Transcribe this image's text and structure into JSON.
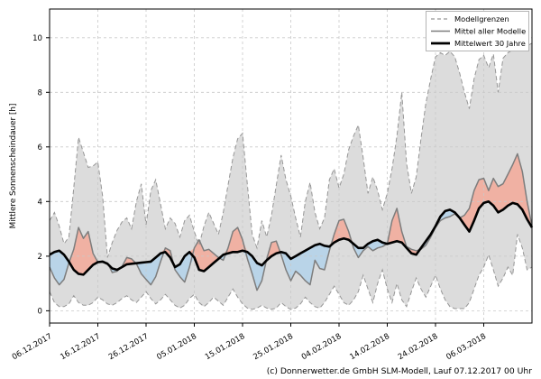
{
  "caption": "(c) Donnerwetter.de GmbH SLM-Modell, Lauf 07.12.2017 00 Uhr",
  "chart_data": {
    "type": "line",
    "title": "",
    "xlabel": "",
    "ylabel": "Mittlere Sonnenscheindauer [h]",
    "x_tick_labels": [
      "06.12.2017",
      "16.12.2017",
      "26.12.2017",
      "05.01.2018",
      "15.01.2018",
      "25.01.2018",
      "04.02.2018",
      "14.02.2018",
      "24.02.2018",
      "06.03.2018"
    ],
    "x_tick_days": [
      0,
      10,
      20,
      30,
      40,
      50,
      60,
      70,
      80,
      90
    ],
    "y_ticks": [
      0,
      2,
      4,
      6,
      8,
      10
    ],
    "xlim": [
      0,
      100
    ],
    "ylim": [
      -0.45,
      11.05
    ],
    "grid": true,
    "legend_position": "top-right",
    "legend_entries": [
      {
        "label": "Modellgrenzen",
        "style": "dashed-gray"
      },
      {
        "label": "Mittel aller Modelle",
        "style": "solid-gray"
      },
      {
        "label": "Mittelwert 30 Jahre",
        "style": "thick-black"
      }
    ],
    "series": [
      {
        "key": "upper",
        "name": "Modellgrenzen (obere Grenze)",
        "values": [
          3.3,
          3.6,
          3.1,
          2.45,
          2.7,
          4.5,
          6.35,
          5.8,
          5.25,
          5.3,
          5.45,
          4.2,
          1.95,
          2.5,
          2.95,
          3.25,
          3.4,
          3.0,
          4.0,
          4.65,
          3.15,
          4.4,
          4.8,
          3.9,
          3.0,
          3.4,
          3.2,
          2.7,
          3.3,
          3.5,
          2.9,
          2.4,
          3.1,
          3.6,
          3.2,
          2.8,
          3.6,
          4.6,
          5.6,
          6.3,
          6.5,
          4.6,
          2.8,
          2.3,
          3.3,
          2.7,
          3.5,
          4.6,
          5.7,
          4.8,
          4.2,
          3.4,
          2.7,
          4.0,
          4.7,
          3.6,
          3.0,
          3.4,
          4.8,
          5.2,
          4.5,
          5.0,
          5.9,
          6.4,
          6.8,
          5.6,
          4.3,
          4.9,
          4.4,
          3.7,
          4.3,
          5.2,
          6.4,
          8.0,
          5.4,
          4.3,
          4.9,
          6.3,
          7.6,
          8.5,
          9.3,
          9.45,
          9.35,
          9.5,
          9.3,
          8.7,
          8.0,
          7.4,
          8.5,
          9.2,
          9.35,
          8.9,
          9.4,
          8.0,
          9.25,
          9.45,
          9.55,
          9.6,
          9.65,
          9.7,
          9.8
        ]
      },
      {
        "key": "lower",
        "name": "Modellgrenzen (untere Grenze)",
        "values": [
          0.7,
          0.3,
          0.15,
          0.15,
          0.25,
          0.55,
          0.3,
          0.2,
          0.2,
          0.3,
          0.5,
          0.4,
          0.25,
          0.2,
          0.3,
          0.45,
          0.55,
          0.4,
          0.3,
          0.5,
          0.7,
          0.45,
          0.25,
          0.4,
          0.6,
          0.4,
          0.2,
          0.1,
          0.2,
          0.45,
          0.6,
          0.3,
          0.15,
          0.3,
          0.5,
          0.35,
          0.2,
          0.5,
          0.8,
          0.5,
          0.25,
          0.1,
          0.05,
          0.1,
          0.2,
          0.1,
          0.05,
          0.1,
          0.3,
          0.15,
          0.05,
          0.1,
          0.25,
          0.5,
          0.3,
          0.15,
          0.1,
          0.3,
          0.6,
          0.9,
          0.6,
          0.3,
          0.2,
          0.4,
          0.7,
          1.3,
          0.8,
          0.3,
          1.0,
          1.5,
          0.8,
          0.3,
          1.0,
          0.4,
          0.15,
          0.7,
          1.2,
          0.8,
          0.5,
          0.9,
          1.3,
          0.8,
          0.4,
          0.15,
          0.08,
          0.08,
          0.08,
          0.3,
          0.8,
          1.3,
          1.6,
          2.05,
          1.5,
          0.9,
          1.2,
          1.6,
          1.3,
          2.8,
          2.3,
          1.5,
          1.6
        ]
      },
      {
        "key": "mean",
        "name": "Mittel aller Modelle",
        "values": [
          1.6,
          1.2,
          0.95,
          1.15,
          1.75,
          2.25,
          3.05,
          2.65,
          2.9,
          2.1,
          1.78,
          1.82,
          1.75,
          1.4,
          1.45,
          1.62,
          1.95,
          1.9,
          1.72,
          1.35,
          1.15,
          0.95,
          1.25,
          1.8,
          2.3,
          2.2,
          1.5,
          1.25,
          1.05,
          1.6,
          2.3,
          2.6,
          2.2,
          2.25,
          2.1,
          1.95,
          1.85,
          2.3,
          2.9,
          3.05,
          2.6,
          1.9,
          1.35,
          0.75,
          1.1,
          1.9,
          2.5,
          2.55,
          2.05,
          1.5,
          1.1,
          1.45,
          1.3,
          1.1,
          0.95,
          1.85,
          1.55,
          1.5,
          2.2,
          2.8,
          3.3,
          3.35,
          2.9,
          2.3,
          1.95,
          2.2,
          2.35,
          2.2,
          2.3,
          2.35,
          2.45,
          3.3,
          3.75,
          2.9,
          2.35,
          2.25,
          2.2,
          2.25,
          2.4,
          2.7,
          3.05,
          3.3,
          3.4,
          3.45,
          3.55,
          3.4,
          3.5,
          3.75,
          4.4,
          4.8,
          4.85,
          4.4,
          4.85,
          4.55,
          4.65,
          5.0,
          5.35,
          5.75,
          5.1,
          4.0,
          3.1
        ]
      },
      {
        "key": "clim",
        "name": "Mittelwert 30 Jahre",
        "values": [
          2.05,
          2.15,
          2.2,
          2.05,
          1.8,
          1.5,
          1.35,
          1.32,
          1.5,
          1.68,
          1.78,
          1.8,
          1.72,
          1.55,
          1.5,
          1.6,
          1.7,
          1.72,
          1.74,
          1.76,
          1.78,
          1.8,
          1.95,
          2.1,
          2.15,
          1.95,
          1.6,
          1.7,
          2.0,
          2.15,
          1.95,
          1.5,
          1.45,
          1.6,
          1.75,
          1.9,
          2.05,
          2.1,
          2.15,
          2.15,
          2.2,
          2.15,
          2.0,
          1.75,
          1.66,
          1.85,
          2.0,
          2.1,
          2.15,
          2.1,
          1.9,
          2.0,
          2.1,
          2.2,
          2.3,
          2.4,
          2.45,
          2.38,
          2.35,
          2.5,
          2.6,
          2.65,
          2.6,
          2.45,
          2.3,
          2.3,
          2.45,
          2.55,
          2.6,
          2.5,
          2.45,
          2.5,
          2.55,
          2.5,
          2.3,
          2.1,
          2.05,
          2.3,
          2.55,
          2.8,
          3.1,
          3.45,
          3.65,
          3.7,
          3.6,
          3.4,
          3.15,
          2.9,
          3.3,
          3.75,
          3.95,
          4.0,
          3.85,
          3.6,
          3.7,
          3.85,
          3.95,
          3.9,
          3.7,
          3.35,
          3.05
        ]
      }
    ],
    "colors": {
      "band": "#dcdcdc",
      "above_normal": "#f0b1a3",
      "below_normal": "#b9d4e8",
      "bounds_line": "#969696",
      "mean_line": "#7d7d7d",
      "clim_line": "#000000",
      "grid": "#c9c9c9",
      "spine": "#000000",
      "legend_border": "#b4b4b4"
    }
  }
}
